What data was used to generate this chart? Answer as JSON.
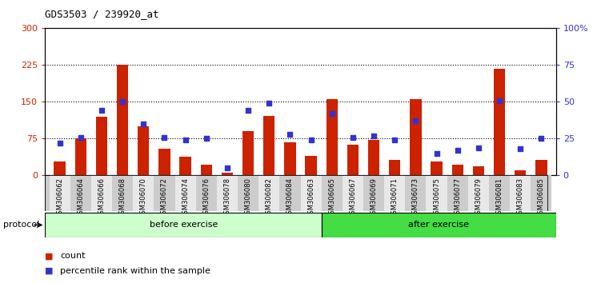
{
  "title": "GDS3503 / 239920_at",
  "categories": [
    "GSM306062",
    "GSM306064",
    "GSM306066",
    "GSM306068",
    "GSM306070",
    "GSM306072",
    "GSM306074",
    "GSM306076",
    "GSM306078",
    "GSM306080",
    "GSM306082",
    "GSM306084",
    "GSM306063",
    "GSM306065",
    "GSM306067",
    "GSM306069",
    "GSM306071",
    "GSM306073",
    "GSM306075",
    "GSM306077",
    "GSM306079",
    "GSM306081",
    "GSM306083",
    "GSM306085"
  ],
  "count_values": [
    28,
    75,
    120,
    225,
    100,
    55,
    38,
    22,
    5,
    90,
    122,
    68,
    40,
    155,
    62,
    72,
    32,
    155,
    28,
    22,
    18,
    218,
    10,
    32
  ],
  "percentile_values": [
    22,
    26,
    44,
    50,
    35,
    26,
    24,
    25,
    5,
    44,
    49,
    28,
    24,
    42,
    26,
    27,
    24,
    37,
    15,
    17,
    19,
    51,
    18,
    25
  ],
  "before_count": 13,
  "after_count": 11,
  "before_label": "before exercise",
  "after_label": "after exercise",
  "protocol_label": "protocol",
  "legend_count": "count",
  "legend_percentile": "percentile rank within the sample",
  "left_ylim": [
    0,
    300
  ],
  "right_ylim": [
    0,
    100
  ],
  "left_yticks": [
    0,
    75,
    150,
    225,
    300
  ],
  "right_yticks": [
    0,
    25,
    50,
    75,
    100
  ],
  "right_yticklabels": [
    "0",
    "25",
    "50",
    "75",
    "100%"
  ],
  "bar_color": "#cc2200",
  "dot_color": "#3333cc",
  "before_bg": "#ccffcc",
  "after_bg": "#44dd44",
  "header_bg": "#cccccc",
  "grid_color": "black",
  "title_color": "black",
  "left_tick_color": "#cc2200",
  "right_tick_color": "#3333cc",
  "fig_width": 7.51,
  "fig_height": 3.54,
  "dpi": 100
}
